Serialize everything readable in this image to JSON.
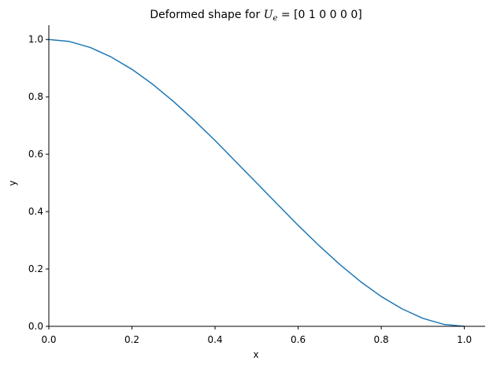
{
  "chart_data": {
    "type": "line",
    "title": "Deformed shape for ",
    "title_math_symbol": "U",
    "title_math_subscript": "e",
    "title_vector": " = [0 1 0 0 0 0]",
    "xlabel": "x",
    "ylabel": "y",
    "xlim": [
      0.0,
      1.05
    ],
    "ylim": [
      0.0,
      1.05
    ],
    "x_ticks": [
      0.0,
      0.2,
      0.4,
      0.6,
      0.8,
      1.0
    ],
    "y_ticks": [
      0.0,
      0.2,
      0.4,
      0.6,
      0.8,
      1.0
    ],
    "x_tick_labels": [
      "0.0",
      "0.2",
      "0.4",
      "0.6",
      "0.8",
      "1.0"
    ],
    "y_tick_labels": [
      "0.0",
      "0.2",
      "0.4",
      "0.6",
      "0.8",
      "1.0"
    ],
    "grid": false,
    "series": [
      {
        "color": "#1f77b4",
        "x": [
          0.0,
          0.05,
          0.1,
          0.15,
          0.2,
          0.25,
          0.3,
          0.35,
          0.4,
          0.45,
          0.5,
          0.55,
          0.6,
          0.65,
          0.7,
          0.75,
          0.8,
          0.85,
          0.9,
          0.95,
          1.0
        ],
        "y": [
          1.0,
          0.993,
          0.972,
          0.939,
          0.896,
          0.844,
          0.784,
          0.718,
          0.648,
          0.574,
          0.5,
          0.426,
          0.352,
          0.282,
          0.216,
          0.156,
          0.104,
          0.061,
          0.028,
          0.007,
          0.0
        ]
      }
    ]
  }
}
